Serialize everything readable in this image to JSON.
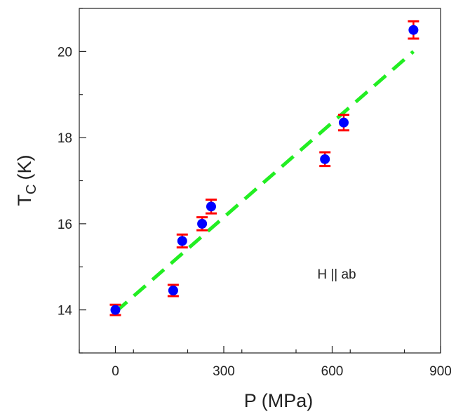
{
  "chart_data": {
    "type": "scatter",
    "xlabel": "P (MPa)",
    "ylabel_main": "T",
    "ylabel_sub": "C",
    "ylabel_unit": "(K)",
    "xlim": [
      -100,
      900
    ],
    "ylim": [
      13,
      21
    ],
    "xticks": [
      0,
      300,
      600,
      900
    ],
    "yticks": [
      14,
      16,
      18,
      20
    ],
    "xtick_labels": [
      "0",
      "300",
      "600",
      "900"
    ],
    "ytick_labels": [
      "14",
      "16",
      "18",
      "20"
    ],
    "annotation": "H || ab",
    "grid": false,
    "series": [
      {
        "marker_color": "#0000ff",
        "errorbar_color": "#ff0000",
        "points": [
          {
            "x": 0,
            "y": 14.0,
            "err": 0.12
          },
          {
            "x": 160,
            "y": 14.45,
            "err": 0.13
          },
          {
            "x": 185,
            "y": 15.6,
            "err": 0.15
          },
          {
            "x": 240,
            "y": 16.0,
            "err": 0.15
          },
          {
            "x": 265,
            "y": 16.4,
            "err": 0.16
          },
          {
            "x": 580,
            "y": 17.5,
            "err": 0.16
          },
          {
            "x": 632,
            "y": 18.35,
            "err": 0.18
          },
          {
            "x": 825,
            "y": 20.5,
            "err": 0.2
          }
        ]
      }
    ],
    "fit_line": {
      "color": "#22ee22",
      "x": [
        0,
        825
      ],
      "y": [
        13.95,
        20.0
      ]
    }
  }
}
